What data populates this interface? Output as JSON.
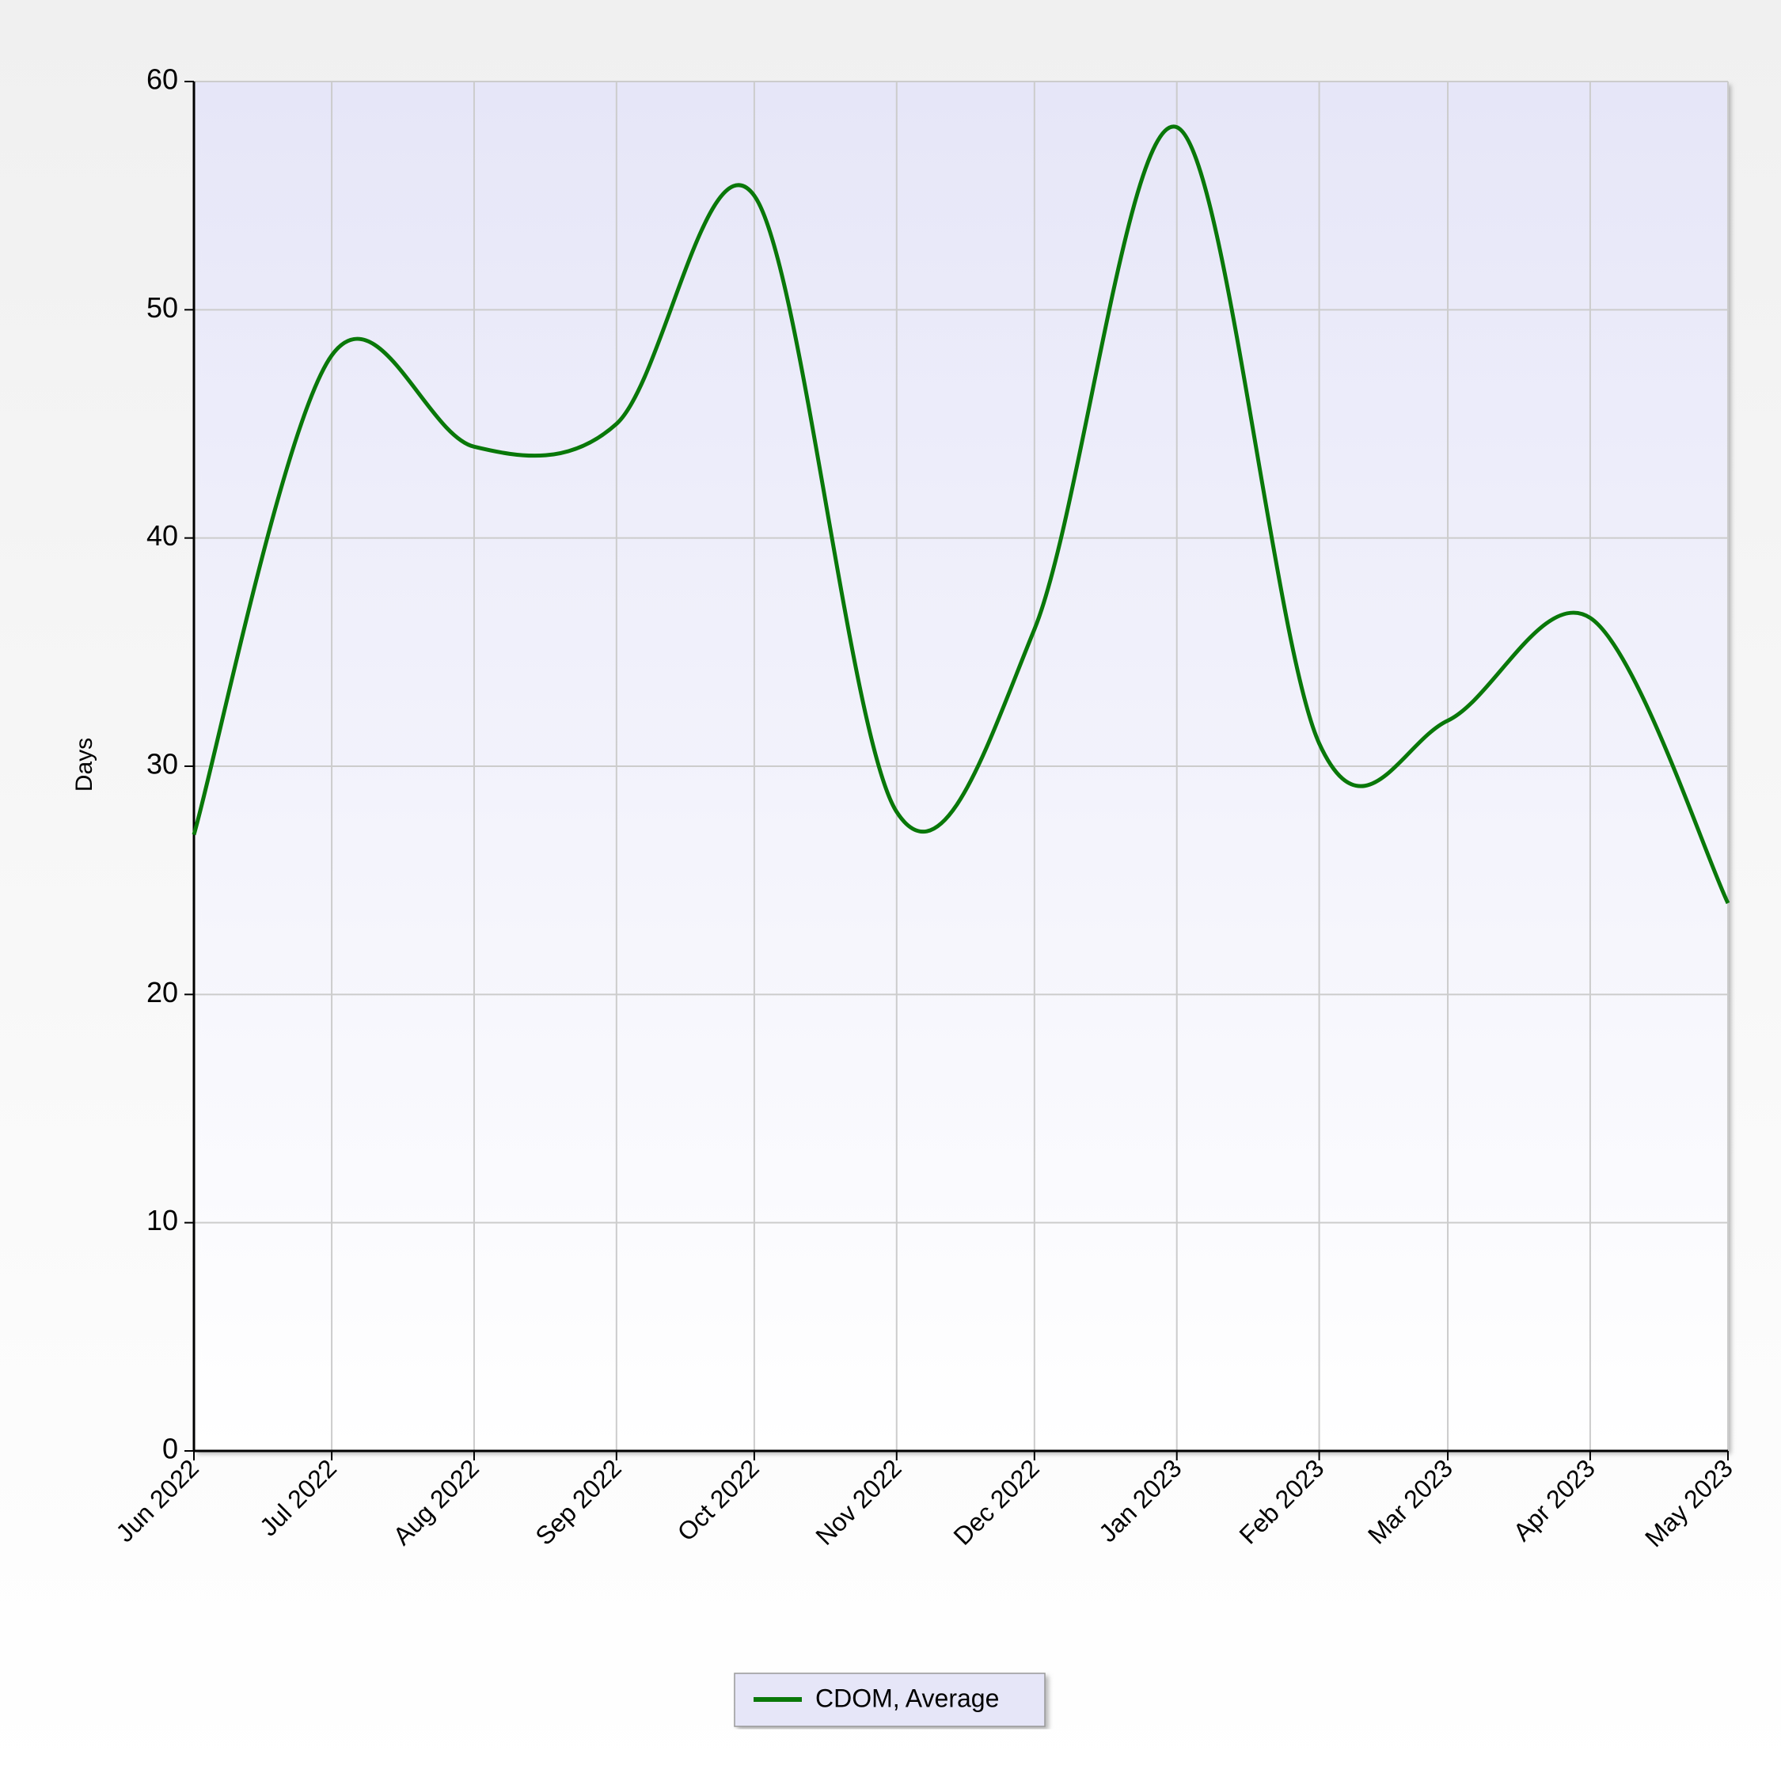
{
  "chart_data": {
    "type": "line",
    "y_label": "Days",
    "categories": [
      "Jun 2022",
      "Jul 2022",
      "Aug 2022",
      "Sep 2022",
      "Oct 2022",
      "Nov 2022",
      "Dec 2022",
      "Jan 2023",
      "Feb 2023",
      "Mar 2023",
      "Apr 2023",
      "May 2023"
    ],
    "series": [
      {
        "name": "CDOM, Average",
        "color": "#097809",
        "values": [
          27,
          48,
          44,
          45,
          55,
          28,
          36,
          58,
          31,
          32,
          36.5,
          24
        ]
      }
    ],
    "ylim": [
      0,
      60
    ],
    "yticks": [
      0,
      10,
      20,
      30,
      40,
      50,
      60
    ],
    "grid": true,
    "legend": "bottom"
  }
}
